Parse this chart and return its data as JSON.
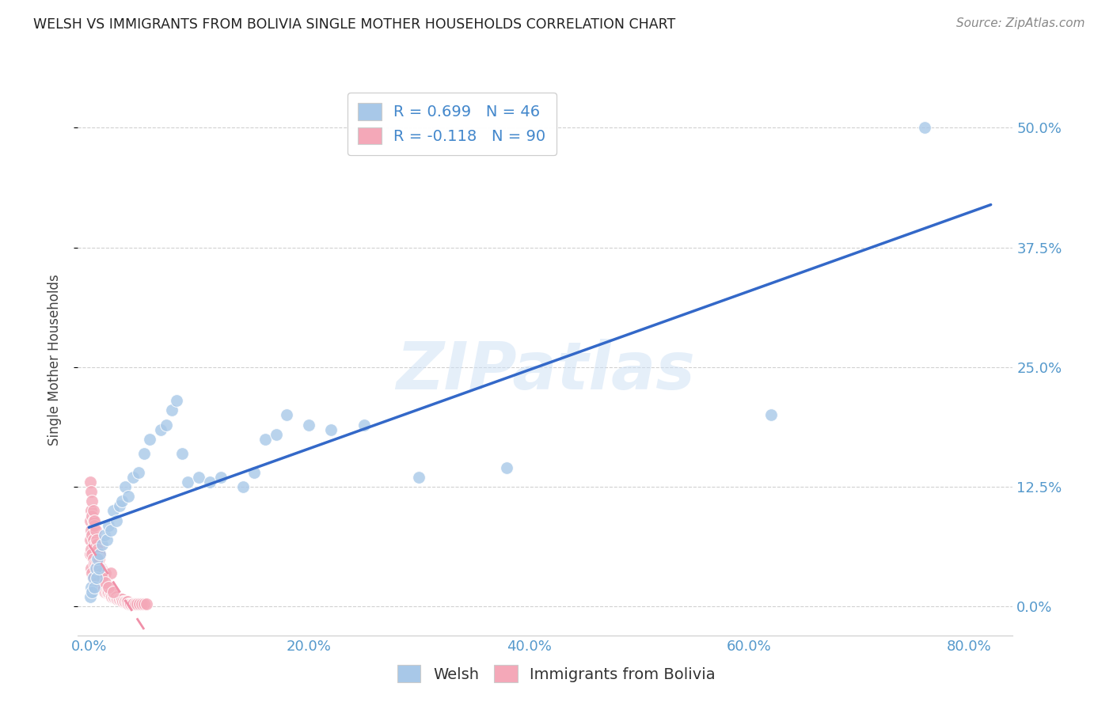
{
  "title": "WELSH VS IMMIGRANTS FROM BOLIVIA SINGLE MOTHER HOUSEHOLDS CORRELATION CHART",
  "source": "Source: ZipAtlas.com",
  "xlabel_ticks": [
    "0.0%",
    "20.0%",
    "40.0%",
    "60.0%",
    "80.0%"
  ],
  "xlabel_tick_vals": [
    0.0,
    0.2,
    0.4,
    0.6,
    0.8
  ],
  "ylabel_ticks": [
    "0.0%",
    "12.5%",
    "25.0%",
    "37.5%",
    "50.0%"
  ],
  "ylabel_tick_vals": [
    0.0,
    0.125,
    0.25,
    0.375,
    0.5
  ],
  "ylabel": "Single Mother Households",
  "xlim": [
    -0.01,
    0.84
  ],
  "ylim": [
    -0.03,
    0.545
  ],
  "welsh_R": 0.699,
  "welsh_N": 46,
  "bolivia_R": -0.118,
  "bolivia_N": 90,
  "welsh_color": "#a8c8e8",
  "bolivia_color": "#f4a8b8",
  "welsh_line_color": "#3368c8",
  "bolivia_line_color": "#f090a8",
  "watermark": "ZIPatlas",
  "welsh_x": [
    0.001,
    0.002,
    0.003,
    0.004,
    0.005,
    0.006,
    0.007,
    0.008,
    0.009,
    0.01,
    0.012,
    0.014,
    0.016,
    0.018,
    0.02,
    0.022,
    0.025,
    0.028,
    0.03,
    0.033,
    0.036,
    0.04,
    0.045,
    0.05,
    0.055,
    0.065,
    0.07,
    0.075,
    0.08,
    0.085,
    0.09,
    0.1,
    0.11,
    0.12,
    0.14,
    0.15,
    0.16,
    0.17,
    0.18,
    0.2,
    0.22,
    0.25,
    0.3,
    0.38,
    0.62,
    0.76
  ],
  "welsh_y": [
    0.01,
    0.02,
    0.015,
    0.03,
    0.02,
    0.04,
    0.03,
    0.05,
    0.04,
    0.055,
    0.065,
    0.075,
    0.07,
    0.085,
    0.08,
    0.1,
    0.09,
    0.105,
    0.11,
    0.125,
    0.115,
    0.135,
    0.14,
    0.16,
    0.175,
    0.185,
    0.19,
    0.205,
    0.215,
    0.16,
    0.13,
    0.135,
    0.13,
    0.135,
    0.125,
    0.14,
    0.175,
    0.18,
    0.2,
    0.19,
    0.185,
    0.19,
    0.135,
    0.145,
    0.2,
    0.5
  ],
  "bolivia_x": [
    0.001,
    0.001,
    0.001,
    0.002,
    0.002,
    0.002,
    0.002,
    0.003,
    0.003,
    0.003,
    0.003,
    0.004,
    0.004,
    0.004,
    0.004,
    0.005,
    0.005,
    0.005,
    0.005,
    0.006,
    0.006,
    0.006,
    0.007,
    0.007,
    0.007,
    0.008,
    0.008,
    0.008,
    0.009,
    0.009,
    0.009,
    0.01,
    0.01,
    0.01,
    0.011,
    0.011,
    0.012,
    0.012,
    0.013,
    0.013,
    0.014,
    0.015,
    0.015,
    0.016,
    0.017,
    0.018,
    0.019,
    0.02,
    0.02,
    0.021,
    0.022,
    0.023,
    0.024,
    0.025,
    0.026,
    0.027,
    0.028,
    0.029,
    0.03,
    0.031,
    0.032,
    0.033,
    0.034,
    0.035,
    0.036,
    0.037,
    0.038,
    0.039,
    0.04,
    0.042,
    0.044,
    0.046,
    0.048,
    0.05,
    0.052,
    0.001,
    0.002,
    0.003,
    0.004,
    0.005,
    0.006,
    0.007,
    0.008,
    0.009,
    0.01,
    0.011,
    0.012,
    0.015,
    0.018,
    0.022
  ],
  "bolivia_y": [
    0.055,
    0.07,
    0.09,
    0.04,
    0.06,
    0.08,
    0.1,
    0.035,
    0.055,
    0.075,
    0.095,
    0.03,
    0.05,
    0.07,
    0.09,
    0.025,
    0.045,
    0.065,
    0.085,
    0.025,
    0.045,
    0.065,
    0.02,
    0.04,
    0.065,
    0.025,
    0.045,
    0.06,
    0.02,
    0.04,
    0.06,
    0.02,
    0.04,
    0.055,
    0.02,
    0.04,
    0.02,
    0.038,
    0.018,
    0.038,
    0.015,
    0.015,
    0.035,
    0.015,
    0.015,
    0.015,
    0.015,
    0.015,
    0.035,
    0.01,
    0.01,
    0.01,
    0.01,
    0.01,
    0.008,
    0.008,
    0.008,
    0.008,
    0.008,
    0.005,
    0.005,
    0.005,
    0.005,
    0.005,
    0.003,
    0.003,
    0.003,
    0.003,
    0.003,
    0.003,
    0.003,
    0.003,
    0.003,
    0.003,
    0.003,
    0.13,
    0.12,
    0.11,
    0.1,
    0.09,
    0.08,
    0.07,
    0.06,
    0.05,
    0.04,
    0.035,
    0.03,
    0.025,
    0.02,
    0.015
  ]
}
